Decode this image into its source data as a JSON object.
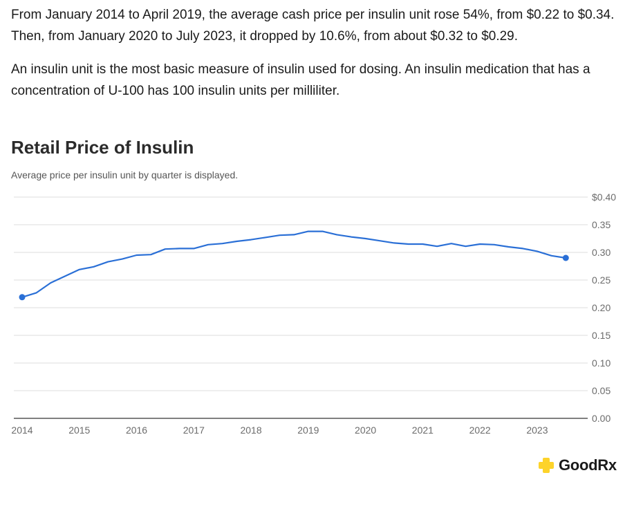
{
  "intro": {
    "paragraph1": "From January 2014 to April 2019, the average cash price per insulin unit rose 54%, from $0.22 to $0.34. Then, from January 2020 to July 2023, it dropped by 10.6%, from about $0.32 to $0.29.",
    "paragraph2": "An insulin unit is the most basic measure of insulin used for dosing. An insulin medication that has a concentration of U-100 has 100 insulin units per milliliter."
  },
  "logo": {
    "text": "GoodRx",
    "icon": "goodrx-plus-icon",
    "color": "#fdd32a"
  },
  "chart_data": {
    "type": "line",
    "title": "Retail Price of Insulin",
    "subtitle": "Average price per insulin unit by quarter is displayed.",
    "xlabel": "",
    "ylabel": "",
    "xlim": [
      2014,
      2023.75
    ],
    "ylim": [
      0,
      0.4
    ],
    "grid": true,
    "y_ticks": [
      "0.00",
      "0.05",
      "0.10",
      "0.15",
      "0.20",
      "0.25",
      "0.30",
      "0.35",
      "$0.40"
    ],
    "y_tick_values": [
      0,
      0.05,
      0.1,
      0.15,
      0.2,
      0.25,
      0.3,
      0.35,
      0.4
    ],
    "x_ticks": [
      "2014",
      "2015",
      "2016",
      "2017",
      "2018",
      "2019",
      "2020",
      "2021",
      "2022",
      "2023"
    ],
    "x_tick_values": [
      2014,
      2015,
      2016,
      2017,
      2018,
      2019,
      2020,
      2021,
      2022,
      2023
    ],
    "line_color": "#2a6fd6",
    "series": [
      {
        "x": [
          2014.0,
          2014.25,
          2014.5,
          2014.75,
          2015.0,
          2015.25,
          2015.5,
          2015.75,
          2016.0,
          2016.25,
          2016.5,
          2016.75,
          2017.0,
          2017.25,
          2017.5,
          2017.75,
          2018.0,
          2018.25,
          2018.5,
          2018.75,
          2019.0,
          2019.25,
          2019.5,
          2019.75,
          2020.0,
          2020.25,
          2020.5,
          2020.75,
          2021.0,
          2021.25,
          2021.5,
          2021.75,
          2022.0,
          2022.25,
          2022.5,
          2022.75,
          2023.0,
          2023.25,
          2023.5
        ],
        "values": [
          0.219,
          0.227,
          0.245,
          0.257,
          0.269,
          0.274,
          0.283,
          0.288,
          0.295,
          0.296,
          0.306,
          0.307,
          0.307,
          0.314,
          0.316,
          0.32,
          0.323,
          0.327,
          0.331,
          0.332,
          0.338,
          0.338,
          0.332,
          0.328,
          0.325,
          0.321,
          0.317,
          0.315,
          0.315,
          0.311,
          0.316,
          0.311,
          0.315,
          0.314,
          0.31,
          0.307,
          0.302,
          0.294,
          0.29
        ]
      }
    ]
  }
}
